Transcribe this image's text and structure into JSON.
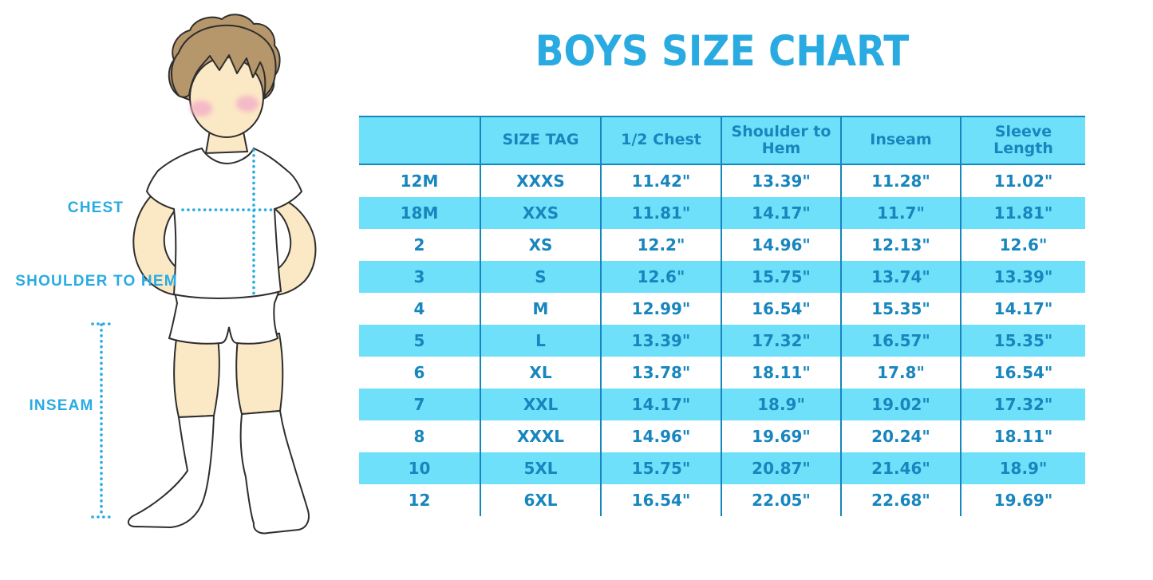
{
  "title": "BOYS SIZE CHART",
  "figure": {
    "description": "outline illustration of a boy in white t-shirt, shorts and knee socks with dotted measurement guides",
    "labels": {
      "chest": "CHEST",
      "shoulder_to_hem": "SHOULDER TO HEM",
      "inseam": "INSEAM"
    }
  },
  "colors": {
    "accent_blue": "#29ABE2",
    "table_text_blue": "#1886BE",
    "row_band_cyan": "#6FE0F9",
    "grid_line_blue": "#1886BE",
    "skin": "#FBE8C4",
    "hair_brown": "#B6966B",
    "blush_pink": "#F3AFC9",
    "outline": "#2E2E2E"
  },
  "chart_data": {
    "type": "table",
    "title": "BOYS SIZE CHART",
    "columns": [
      "",
      "SIZE TAG",
      "1/2 Chest",
      "Shoulder to Hem",
      "Inseam",
      "Sleeve Length"
    ],
    "rows": [
      [
        "12M",
        "XXXS",
        "11.42\"",
        "13.39\"",
        "11.28\"",
        "11.02\""
      ],
      [
        "18M",
        "XXS",
        "11.81\"",
        "14.17\"",
        "11.7\"",
        "11.81\""
      ],
      [
        "2",
        "XS",
        "12.2\"",
        "14.96\"",
        "12.13\"",
        "12.6\""
      ],
      [
        "3",
        "S",
        "12.6\"",
        "15.75\"",
        "13.74\"",
        "13.39\""
      ],
      [
        "4",
        "M",
        "12.99\"",
        "16.54\"",
        "15.35\"",
        "14.17\""
      ],
      [
        "5",
        "L",
        "13.39\"",
        "17.32\"",
        "16.57\"",
        "15.35\""
      ],
      [
        "6",
        "XL",
        "13.78\"",
        "18.11\"",
        "17.8\"",
        "16.54\""
      ],
      [
        "7",
        "XXL",
        "14.17\"",
        "18.9\"",
        "19.02\"",
        "17.32\""
      ],
      [
        "8",
        "XXXL",
        "14.96\"",
        "19.69\"",
        "20.24\"",
        "18.11\""
      ],
      [
        "10",
        "5XL",
        "15.75\"",
        "20.87\"",
        "21.46\"",
        "18.9\""
      ],
      [
        "12",
        "6XL",
        "16.54\"",
        "22.05\"",
        "22.68\"",
        "19.69\""
      ]
    ]
  }
}
